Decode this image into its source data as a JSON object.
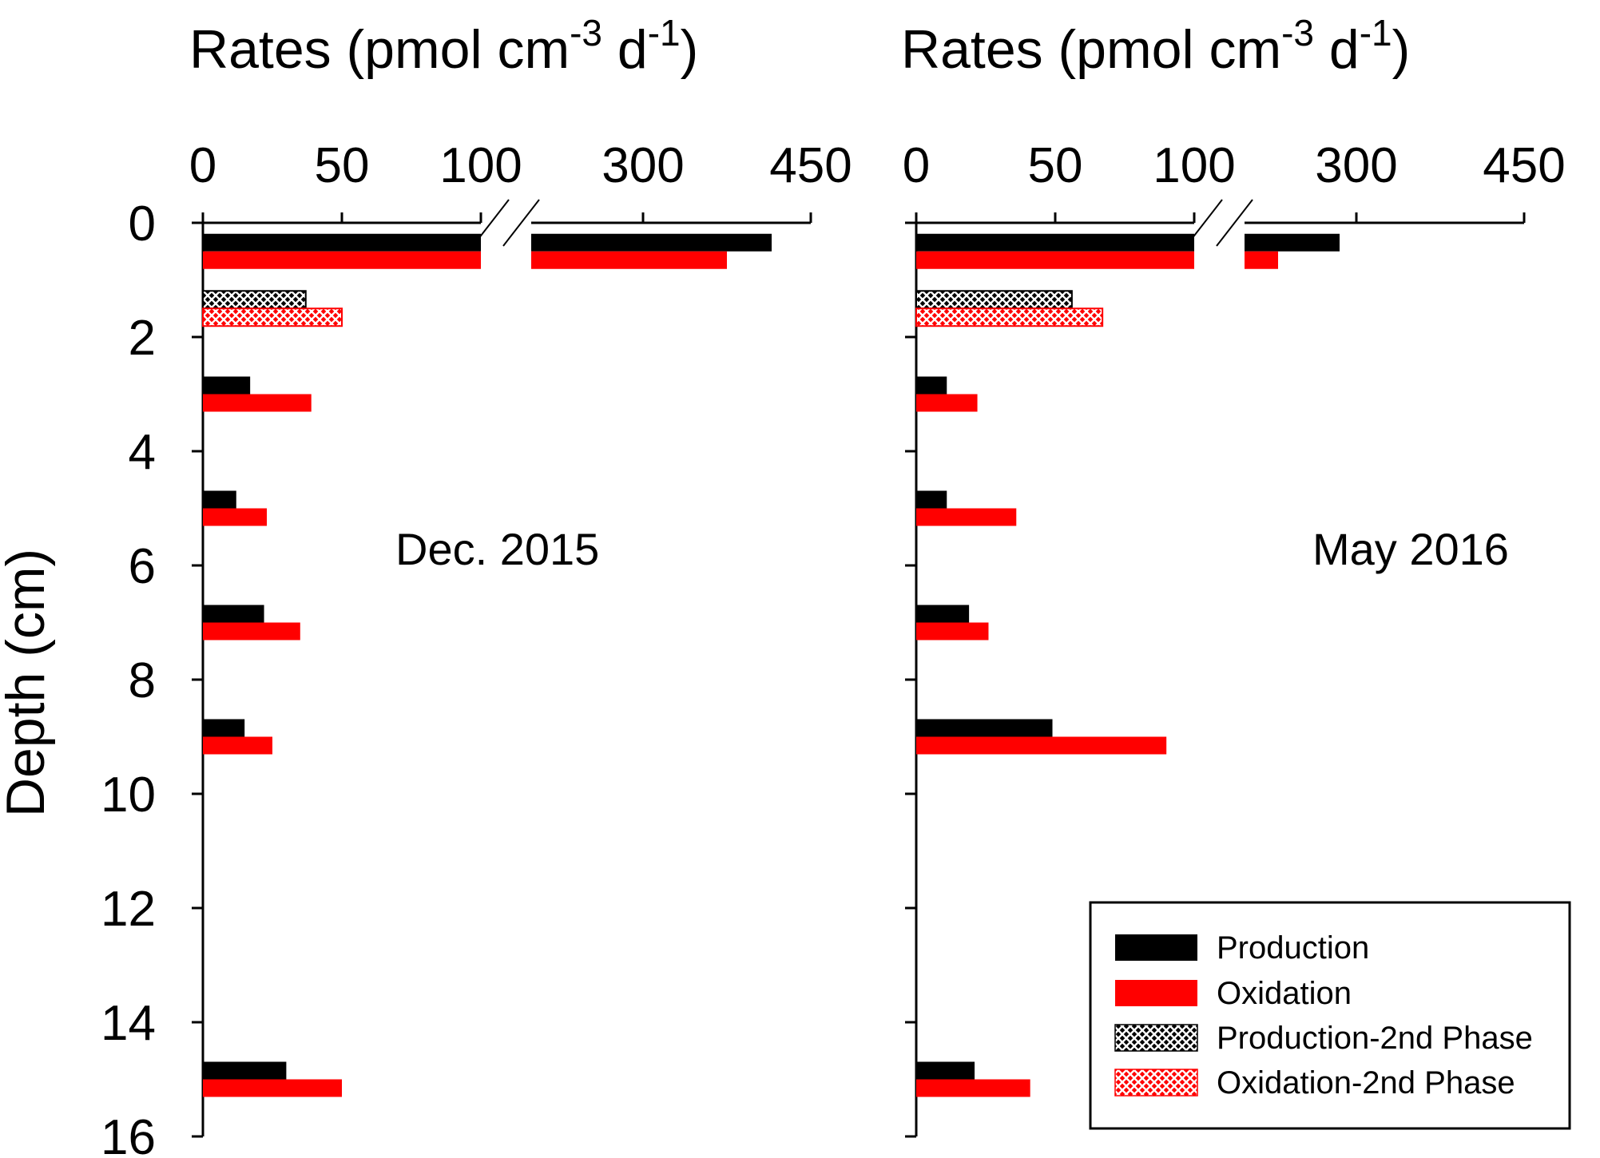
{
  "chart_data": [
    {
      "type": "bar",
      "orientation": "horizontal",
      "panel_label": "Dec. 2015",
      "title": {
        "prefix": "Rates (pmol cm",
        "sup1": "-3",
        "mid": " d",
        "sup2": "-1",
        "suffix": ")"
      },
      "xlabel": "Rates (pmol cm-3 d-1)",
      "ylabel": "Depth (cm)",
      "x_axis_break": {
        "lower_range": [
          0,
          100
        ],
        "upper_range": [
          200,
          450
        ]
      },
      "x_ticks": [
        "0",
        "50",
        "100",
        "300",
        "450"
      ],
      "y_ticks": [
        "0",
        "2",
        "4",
        "6",
        "8",
        "10",
        "12",
        "14",
        "16"
      ],
      "ylim": [
        0,
        16
      ],
      "series": [
        {
          "name": "Production",
          "depths": [
            0.5,
            3.0,
            5.0,
            7.0,
            9.0,
            15.0
          ],
          "values": [
            415,
            17,
            12,
            22,
            15,
            30
          ]
        },
        {
          "name": "Oxidation",
          "depths": [
            0.5,
            3.0,
            5.0,
            7.0,
            9.0,
            15.0
          ],
          "values": [
            375,
            39,
            23,
            35,
            25,
            50
          ]
        },
        {
          "name": "Production-2nd Phase",
          "depths": [
            1.5
          ],
          "values": [
            37
          ]
        },
        {
          "name": "Oxidation-2nd Phase",
          "depths": [
            1.5
          ],
          "values": [
            50
          ]
        }
      ]
    },
    {
      "type": "bar",
      "orientation": "horizontal",
      "panel_label": "May 2016",
      "title": {
        "prefix": "Rates (pmol cm",
        "sup1": "-3",
        "mid": " d",
        "sup2": "-1",
        "suffix": ")"
      },
      "xlabel": "Rates (pmol cm-3 d-1)",
      "ylabel": "Depth (cm)",
      "x_axis_break": {
        "lower_range": [
          0,
          100
        ],
        "upper_range": [
          200,
          450
        ]
      },
      "x_ticks": [
        "0",
        "50",
        "100",
        "300",
        "450"
      ],
      "y_ticks": [
        "0",
        "2",
        "4",
        "6",
        "8",
        "10",
        "12",
        "14",
        "16"
      ],
      "ylim": [
        0,
        16
      ],
      "series": [
        {
          "name": "Production",
          "depths": [
            0.5,
            3.0,
            5.0,
            7.0,
            9.0,
            15.0
          ],
          "values": [
            285,
            11,
            11,
            19,
            49,
            21
          ]
        },
        {
          "name": "Oxidation",
          "depths": [
            0.5,
            3.0,
            5.0,
            7.0,
            9.0,
            15.0
          ],
          "values": [
            230,
            22,
            36,
            26,
            90,
            41
          ]
        },
        {
          "name": "Production-2nd Phase",
          "depths": [
            1.5
          ],
          "values": [
            56
          ]
        },
        {
          "name": "Oxidation-2nd Phase",
          "depths": [
            1.5
          ],
          "values": [
            67
          ]
        }
      ]
    }
  ],
  "legend": {
    "placement": "bottom-right",
    "items": [
      {
        "label": "Production",
        "color": "#000000",
        "pattern": "solid"
      },
      {
        "label": "Oxidation",
        "color": "#ff0000",
        "pattern": "solid"
      },
      {
        "label": "Production-2nd Phase",
        "color": "#000000",
        "pattern": "crosshatch"
      },
      {
        "label": "Oxidation-2nd Phase",
        "color": "#ff0000",
        "pattern": "crosshatch"
      }
    ]
  },
  "colors": {
    "production": "#000000",
    "oxidation": "#ff0000",
    "hatch_bg": "#ffffff"
  }
}
